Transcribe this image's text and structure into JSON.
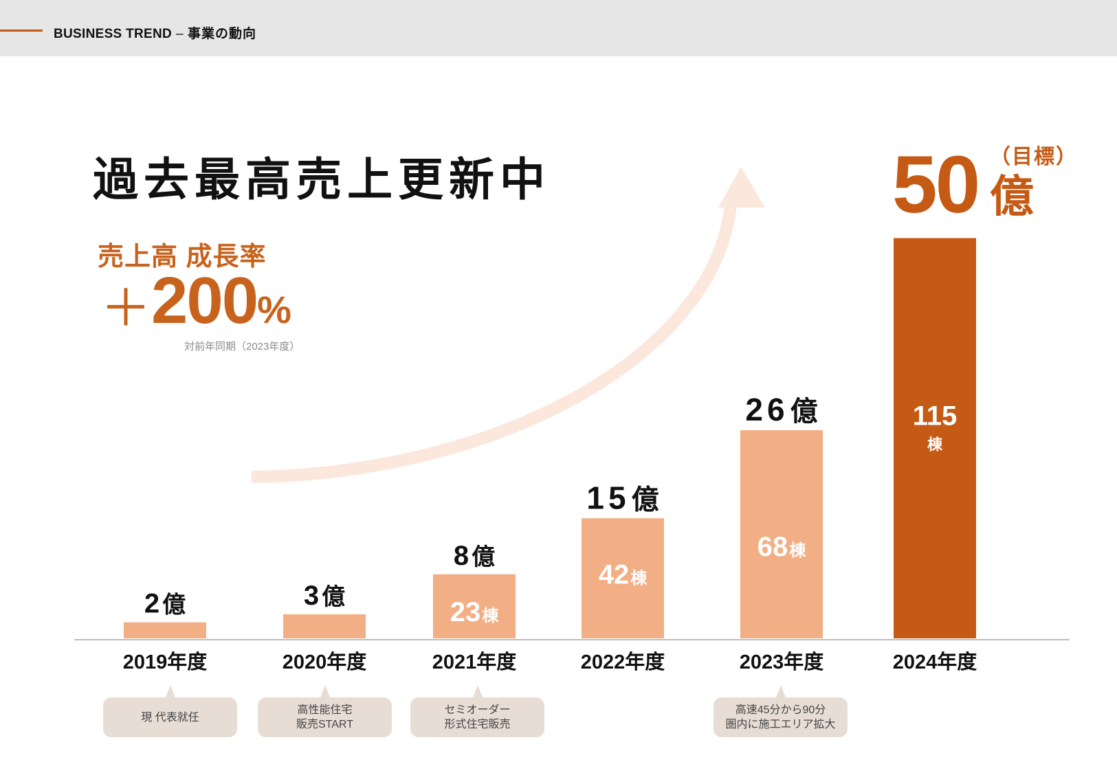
{
  "header": {
    "title_en": "BUSINESS TREND",
    "separator": "–",
    "title_jp": "事業の動向"
  },
  "headline": "過去最高売上更新中",
  "growth": {
    "label": "売上高 成長率",
    "plus": "＋",
    "value": "200",
    "percent": "%",
    "note": "対前年同期（2023年度）"
  },
  "target": {
    "value": "50",
    "unit": "億",
    "note": "（目標）"
  },
  "colors": {
    "accent": "#c55a14",
    "bar_light": "#f2ae84",
    "bar_target": "#c55a14",
    "arrow": "#fbe7dc",
    "bubble": "#e8ddd5",
    "baseline": "#bdbdbd"
  },
  "chart_data": {
    "type": "bar",
    "categories": [
      "2019年度",
      "2020年度",
      "2021年度",
      "2022年度",
      "2023年度",
      "2024年度"
    ],
    "values": [
      2,
      3,
      8,
      15,
      26,
      50
    ],
    "value_unit": "億",
    "value_labels": [
      "2",
      "3",
      "8",
      "15",
      "26",
      "50"
    ],
    "units_built": [
      null,
      null,
      23,
      42,
      68,
      115
    ],
    "units_label": "棟",
    "target_index": 5,
    "ylim": [
      0,
      50
    ],
    "grid": false,
    "legend": "none"
  },
  "milestones": [
    {
      "year_index": 0,
      "lines": [
        "現 代表就任"
      ]
    },
    {
      "year_index": 1,
      "lines": [
        "高性能住宅",
        "販売START"
      ]
    },
    {
      "year_index": 2,
      "lines": [
        "セミオーダー",
        "形式住宅販売"
      ]
    },
    {
      "year_index": 4,
      "lines": [
        "高速45分から90分",
        "圏内に施工エリア拡大"
      ]
    }
  ]
}
